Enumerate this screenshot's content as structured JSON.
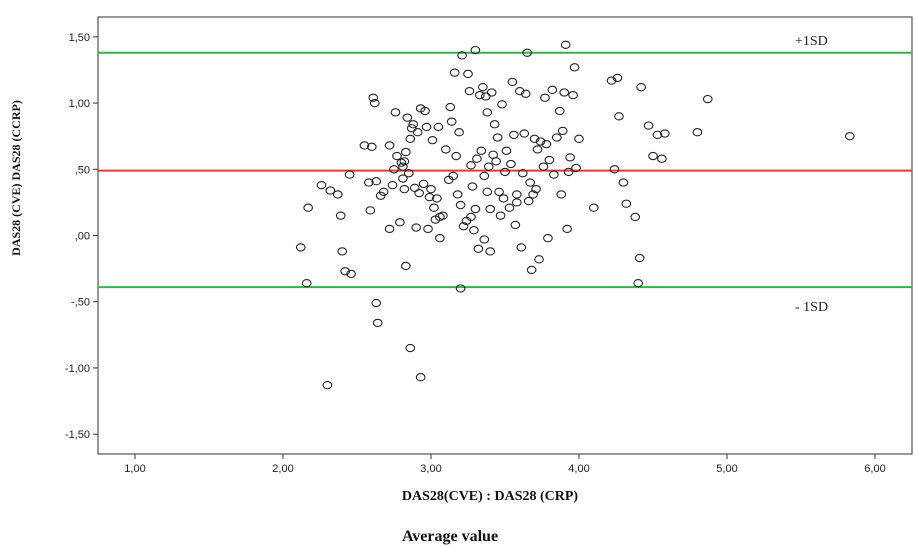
{
  "chart_data": {
    "type": "scatter",
    "title": "",
    "xlabel": "DAS28(CVE) : DAS28 (CRP)",
    "xlabel_secondary": "Average value",
    "ylabel": "DAS28 (CVE) DAS28 (CCRP)",
    "xlim": [
      0.75,
      6.25
    ],
    "ylim": [
      -1.65,
      1.65
    ],
    "x_ticks": [
      {
        "value": 1,
        "label": "1,00"
      },
      {
        "value": 2,
        "label": "2,00"
      },
      {
        "value": 3,
        "label": "3,00"
      },
      {
        "value": 4,
        "label": "4,00"
      },
      {
        "value": 5,
        "label": "5,00"
      },
      {
        "value": 6,
        "label": "6,00"
      }
    ],
    "y_ticks": [
      {
        "value": 1.5,
        "label": "1,50"
      },
      {
        "value": 1.0,
        "label": "1,00"
      },
      {
        "value": 0.5,
        "label": ",50"
      },
      {
        "value": 0.0,
        "label": ",00"
      },
      {
        "value": -0.5,
        "label": "-,50"
      },
      {
        "value": -1.0,
        "label": "-1,00"
      },
      {
        "value": -1.5,
        "label": "-1,50"
      }
    ],
    "grid": false,
    "reference_lines": [
      {
        "value": 1.38,
        "label": "+1SD",
        "color": "#33b44a"
      },
      {
        "value": 0.49,
        "label": "",
        "color": "#e8393a"
      },
      {
        "value": -0.39,
        "label": "- 1SD",
        "color": "#33b44a"
      }
    ],
    "marker_color": "#222222",
    "points": [
      [
        2.12,
        -0.09
      ],
      [
        2.16,
        -0.36
      ],
      [
        2.17,
        0.21
      ],
      [
        2.26,
        0.38
      ],
      [
        2.3,
        -1.13
      ],
      [
        2.32,
        0.34
      ],
      [
        2.37,
        0.31
      ],
      [
        2.39,
        0.15
      ],
      [
        2.4,
        -0.12
      ],
      [
        2.42,
        -0.27
      ],
      [
        2.45,
        0.46
      ],
      [
        2.46,
        -0.29
      ],
      [
        2.55,
        0.68
      ],
      [
        2.58,
        0.4
      ],
      [
        2.59,
        0.19
      ],
      [
        2.6,
        0.67
      ],
      [
        2.61,
        1.04
      ],
      [
        2.62,
        1.0
      ],
      [
        2.63,
        0.41
      ],
      [
        2.63,
        -0.51
      ],
      [
        2.64,
        -0.66
      ],
      [
        2.66,
        0.3
      ],
      [
        2.68,
        0.33
      ],
      [
        2.72,
        0.05
      ],
      [
        2.72,
        0.68
      ],
      [
        2.74,
        0.38
      ],
      [
        2.75,
        0.5
      ],
      [
        2.76,
        0.93
      ],
      [
        2.77,
        0.6
      ],
      [
        2.79,
        0.1
      ],
      [
        2.8,
        0.55
      ],
      [
        2.81,
        0.43
      ],
      [
        2.81,
        0.52
      ],
      [
        2.82,
        0.56
      ],
      [
        2.82,
        0.35
      ],
      [
        2.83,
        0.63
      ],
      [
        2.83,
        -0.23
      ],
      [
        2.84,
        0.89
      ],
      [
        2.85,
        0.47
      ],
      [
        2.86,
        -0.85
      ],
      [
        2.86,
        0.73
      ],
      [
        2.87,
        0.81
      ],
      [
        2.88,
        0.84
      ],
      [
        2.89,
        0.36
      ],
      [
        2.9,
        0.06
      ],
      [
        2.91,
        0.78
      ],
      [
        2.92,
        0.32
      ],
      [
        2.93,
        -1.07
      ],
      [
        2.93,
        0.96
      ],
      [
        2.95,
        0.39
      ],
      [
        2.96,
        0.94
      ],
      [
        2.97,
        0.82
      ],
      [
        2.98,
        0.05
      ],
      [
        2.99,
        0.29
      ],
      [
        3.0,
        0.35
      ],
      [
        3.01,
        0.72
      ],
      [
        3.02,
        0.21
      ],
      [
        3.03,
        0.12
      ],
      [
        3.04,
        0.28
      ],
      [
        3.05,
        0.82
      ],
      [
        3.06,
        0.14
      ],
      [
        3.06,
        -0.02
      ],
      [
        3.08,
        0.15
      ],
      [
        3.1,
        0.65
      ],
      [
        3.12,
        0.42
      ],
      [
        3.13,
        0.97
      ],
      [
        3.14,
        0.86
      ],
      [
        3.15,
        0.45
      ],
      [
        3.16,
        1.23
      ],
      [
        3.17,
        0.6
      ],
      [
        3.18,
        0.31
      ],
      [
        3.19,
        0.78
      ],
      [
        3.2,
        0.23
      ],
      [
        3.2,
        -0.4
      ],
      [
        3.21,
        1.36
      ],
      [
        3.22,
        0.07
      ],
      [
        3.24,
        0.11
      ],
      [
        3.25,
        1.22
      ],
      [
        3.26,
        1.09
      ],
      [
        3.27,
        0.14
      ],
      [
        3.27,
        0.53
      ],
      [
        3.28,
        0.37
      ],
      [
        3.29,
        0.04
      ],
      [
        3.3,
        1.4
      ],
      [
        3.3,
        0.2
      ],
      [
        3.31,
        0.58
      ],
      [
        3.32,
        -0.1
      ],
      [
        3.33,
        1.06
      ],
      [
        3.34,
        0.64
      ],
      [
        3.35,
        1.12
      ],
      [
        3.36,
        0.45
      ],
      [
        3.36,
        -0.03
      ],
      [
        3.37,
        1.05
      ],
      [
        3.38,
        0.33
      ],
      [
        3.38,
        0.93
      ],
      [
        3.39,
        0.52
      ],
      [
        3.4,
        0.2
      ],
      [
        3.4,
        -0.12
      ],
      [
        3.41,
        1.08
      ],
      [
        3.42,
        0.61
      ],
      [
        3.43,
        0.84
      ],
      [
        3.44,
        0.56
      ],
      [
        3.45,
        0.74
      ],
      [
        3.46,
        0.33
      ],
      [
        3.47,
        0.15
      ],
      [
        3.48,
        0.99
      ],
      [
        3.49,
        0.28
      ],
      [
        3.5,
        0.48
      ],
      [
        3.51,
        0.64
      ],
      [
        3.53,
        0.21
      ],
      [
        3.54,
        0.54
      ],
      [
        3.55,
        1.16
      ],
      [
        3.56,
        0.76
      ],
      [
        3.57,
        0.08
      ],
      [
        3.58,
        0.25
      ],
      [
        3.58,
        0.31
      ],
      [
        3.6,
        1.09
      ],
      [
        3.61,
        -0.09
      ],
      [
        3.62,
        0.47
      ],
      [
        3.63,
        0.77
      ],
      [
        3.64,
        1.07
      ],
      [
        3.65,
        1.38
      ],
      [
        3.66,
        0.26
      ],
      [
        3.67,
        0.4
      ],
      [
        3.68,
        -0.26
      ],
      [
        3.69,
        0.31
      ],
      [
        3.7,
        0.73
      ],
      [
        3.71,
        0.35
      ],
      [
        3.72,
        0.65
      ],
      [
        3.73,
        -0.18
      ],
      [
        3.74,
        0.71
      ],
      [
        3.76,
        0.52
      ],
      [
        3.77,
        1.04
      ],
      [
        3.78,
        0.69
      ],
      [
        3.79,
        -0.02
      ],
      [
        3.8,
        0.57
      ],
      [
        3.82,
        1.1
      ],
      [
        3.83,
        0.46
      ],
      [
        3.85,
        0.74
      ],
      [
        3.87,
        0.94
      ],
      [
        3.88,
        0.31
      ],
      [
        3.89,
        0.79
      ],
      [
        3.9,
        1.08
      ],
      [
        3.91,
        1.44
      ],
      [
        3.92,
        0.05
      ],
      [
        3.93,
        0.48
      ],
      [
        3.94,
        0.59
      ],
      [
        3.96,
        1.06
      ],
      [
        3.97,
        1.27
      ],
      [
        3.98,
        0.51
      ],
      [
        4.0,
        0.73
      ],
      [
        4.1,
        0.21
      ],
      [
        4.22,
        1.17
      ],
      [
        4.24,
        0.5
      ],
      [
        4.26,
        1.19
      ],
      [
        4.27,
        0.9
      ],
      [
        4.3,
        0.4
      ],
      [
        4.32,
        0.24
      ],
      [
        4.38,
        0.14
      ],
      [
        4.4,
        -0.36
      ],
      [
        4.41,
        -0.17
      ],
      [
        4.42,
        1.12
      ],
      [
        4.47,
        0.83
      ],
      [
        4.5,
        0.6
      ],
      [
        4.53,
        0.76
      ],
      [
        4.56,
        0.58
      ],
      [
        4.58,
        0.77
      ],
      [
        4.8,
        0.78
      ],
      [
        4.87,
        1.03
      ],
      [
        5.83,
        0.75
      ]
    ]
  }
}
